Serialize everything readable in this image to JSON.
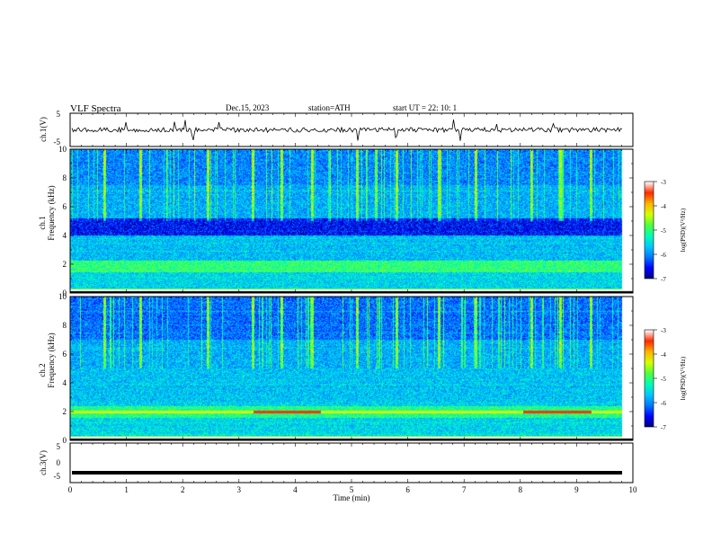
{
  "header": {
    "title": "VLF  Spectra",
    "date": "Dec.15, 2023",
    "station": "station=ATH",
    "start": "start  UT  =    22: 10: 1"
  },
  "chart_data": [
    {
      "type": "line",
      "panel": "ch1-waveform",
      "ylabel": "ch.1(V)",
      "ylim": [
        -5,
        5
      ],
      "yticks": [
        "5",
        "-5"
      ],
      "xlim": [
        0,
        10
      ],
      "series": [
        {
          "baseline": 0,
          "noise_amplitude": 0.7,
          "spike_amplitude": 2.5
        }
      ]
    },
    {
      "type": "heatmap",
      "panel": "ch1-spectrogram",
      "ylabel": "ch.1\nFrequency  (kHz)",
      "ylim": [
        0,
        10
      ],
      "yticks": [
        "0",
        "2",
        "4",
        "6",
        "8",
        "10"
      ],
      "xlim": [
        0,
        10
      ],
      "colorbar": {
        "label": "log(PSD)(V²/Hz)",
        "range": [
          -7,
          -3
        ],
        "ticks": [
          "-3",
          "-4",
          "-5",
          "-6",
          "-7"
        ]
      },
      "features": {
        "dark_band_khz": [
          4.0,
          5.0
        ],
        "bright_band_khz": [
          1.6,
          2.3
        ],
        "sferic_times_min": [
          0.6,
          1.25,
          2.45,
          3.25,
          3.75,
          4.3,
          5.1,
          5.8,
          6.55,
          7.2,
          8.2,
          8.7,
          9.25
        ]
      }
    },
    {
      "type": "heatmap",
      "panel": "ch2-spectrogram",
      "ylabel": "ch.2\nFrequency  (kHz)",
      "ylim": [
        0,
        10
      ],
      "yticks": [
        "0",
        "2",
        "4",
        "6",
        "8",
        "10"
      ],
      "xlim": [
        0,
        10
      ],
      "colorbar": {
        "label": "log(PSD)(V²/Hz)",
        "range": [
          -7,
          -3
        ],
        "ticks": [
          "-3",
          "-4",
          "-5",
          "-6",
          "-7"
        ]
      },
      "features": {
        "red_line_khz": 2.0,
        "red_line_segments_min": [
          [
            3.25,
            4.45
          ],
          [
            8.05,
            9.25
          ]
        ],
        "sferic_times_min": [
          0.6,
          1.25,
          2.45,
          3.25,
          3.75,
          4.3,
          5.1,
          5.8,
          6.55,
          7.2,
          8.2,
          8.7,
          9.25
        ]
      }
    },
    {
      "type": "line",
      "panel": "ch3-waveform",
      "ylabel": "ch.3(V)",
      "ylim": [
        -5,
        5
      ],
      "yticks": [
        "5",
        "0",
        "-5"
      ],
      "xlim": [
        0,
        10
      ],
      "xlabel": "Time  (min)",
      "xticks": [
        "0",
        "1",
        "2",
        "3",
        "4",
        "5",
        "6",
        "7",
        "8",
        "9",
        "10"
      ],
      "series": [
        {
          "baseline": -2.5
        }
      ]
    }
  ],
  "colors": {
    "frame": "#000000",
    "colormap": [
      "#00007a",
      "#0000ff",
      "#0077ff",
      "#00c8ff",
      "#00ffb4",
      "#50ff3c",
      "#d8ff00",
      "#ffb400",
      "#ff2a00",
      "#ffffff"
    ]
  }
}
